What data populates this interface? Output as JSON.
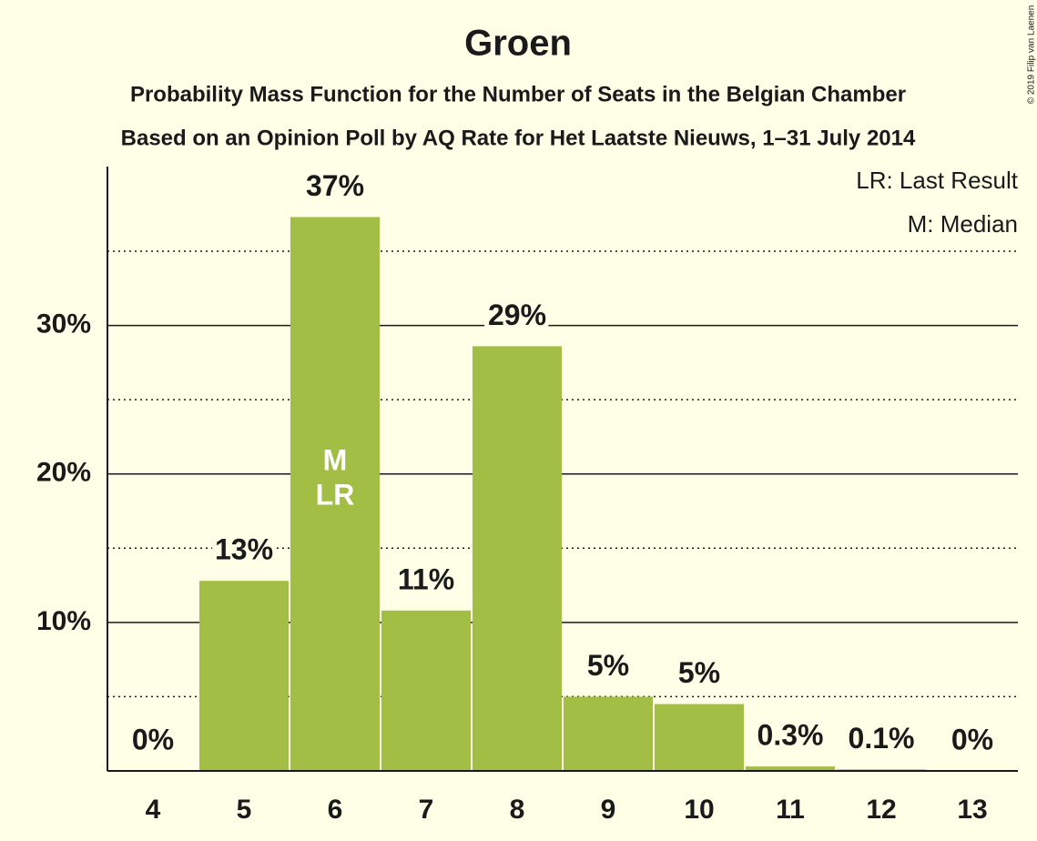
{
  "chart_data": {
    "type": "bar",
    "title": "Groen",
    "subtitle": [
      "Probability Mass Function for the Number of Seats in the Belgian Chamber",
      "Based on an Opinion Poll by AQ Rate for Het Laatste Nieuws, 1–31 July 2014"
    ],
    "categories": [
      "4",
      "5",
      "6",
      "7",
      "8",
      "9",
      "10",
      "11",
      "12",
      "13"
    ],
    "values": [
      0,
      12.8,
      37.3,
      10.8,
      28.6,
      5.0,
      4.5,
      0.3,
      0.1,
      0
    ],
    "value_labels": [
      "0%",
      "13%",
      "37%",
      "11%",
      "29%",
      "5%",
      "5%",
      "0.3%",
      "0.1%",
      "0%"
    ],
    "color": "#a3be45",
    "ylim": [
      0,
      40.7
    ],
    "yticks": [
      {
        "value": 10,
        "label": "10%"
      },
      {
        "value": 20,
        "label": "20%"
      },
      {
        "value": 30,
        "label": "30%"
      }
    ],
    "minor_grid": [
      5,
      15,
      25,
      35
    ],
    "grid": true,
    "annotations": [
      {
        "text": "M",
        "category": "6"
      },
      {
        "text": "LR",
        "category": "6"
      }
    ],
    "legend_notes": [
      "LR: Last Result",
      "M: Median"
    ],
    "credit": "© 2019 Filip van Laenen"
  }
}
